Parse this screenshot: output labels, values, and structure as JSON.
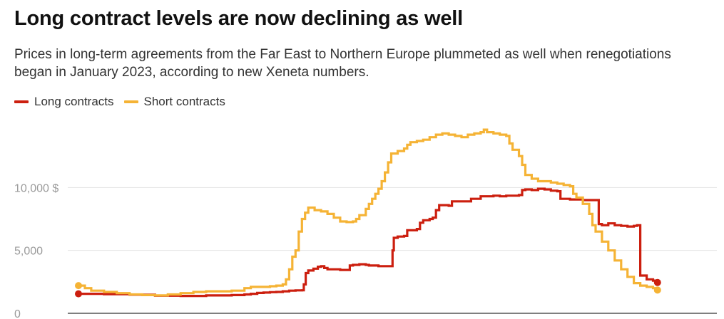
{
  "chart_data": {
    "type": "line",
    "title": "Long contract levels are now declining as well",
    "subtitle": "Prices in long-term agreements from the Far East to Northern Europe plummeted as well when renegotiations began in January 2023, according to new Xeneta numbers.",
    "ylim": [
      0,
      15000
    ],
    "yticks": [
      {
        "value": 0,
        "label": "0"
      },
      {
        "value": 5000,
        "label": "5,000"
      },
      {
        "value": 10000,
        "label": "10,000 $"
      }
    ],
    "x_index_range": [
      0,
      100
    ],
    "step": true,
    "grid": true,
    "legend_position": "top-left",
    "series": [
      {
        "name": "Long contracts",
        "color": "#cc1f0f",
        "points": [
          [
            0,
            1550
          ],
          [
            4,
            1520
          ],
          [
            8,
            1480
          ],
          [
            12,
            1400
          ],
          [
            16,
            1380
          ],
          [
            20,
            1420
          ],
          [
            24,
            1450
          ],
          [
            26,
            1500
          ],
          [
            27,
            1550
          ],
          [
            28,
            1620
          ],
          [
            29,
            1650
          ],
          [
            30,
            1680
          ],
          [
            31,
            1700
          ],
          [
            32,
            1750
          ],
          [
            33,
            1800
          ],
          [
            34,
            1820
          ],
          [
            35,
            1830
          ],
          [
            35.3,
            2300
          ],
          [
            35.6,
            3200
          ],
          [
            36,
            3400
          ],
          [
            36.8,
            3550
          ],
          [
            37.5,
            3700
          ],
          [
            38,
            3750
          ],
          [
            38.5,
            3600
          ],
          [
            39,
            3500
          ],
          [
            41,
            3450
          ],
          [
            42,
            3450
          ],
          [
            42.5,
            3800
          ],
          [
            43,
            3850
          ],
          [
            44,
            3900
          ],
          [
            45,
            3850
          ],
          [
            45.5,
            3800
          ],
          [
            47,
            3750
          ],
          [
            49,
            3750
          ],
          [
            49.2,
            5000
          ],
          [
            49.4,
            6000
          ],
          [
            50,
            6100
          ],
          [
            51,
            6150
          ],
          [
            51.5,
            6600
          ],
          [
            53,
            6700
          ],
          [
            53.5,
            7200
          ],
          [
            54,
            7400
          ],
          [
            55,
            7500
          ],
          [
            55.5,
            7600
          ],
          [
            56,
            8200
          ],
          [
            56.5,
            8600
          ],
          [
            57,
            8600
          ],
          [
            58,
            8550
          ],
          [
            58.5,
            8900
          ],
          [
            60,
            8900
          ],
          [
            61,
            8900
          ],
          [
            61.5,
            9100
          ],
          [
            62,
            9100
          ],
          [
            63,
            9300
          ],
          [
            64,
            9300
          ],
          [
            65,
            9350
          ],
          [
            66,
            9300
          ],
          [
            67,
            9350
          ],
          [
            68,
            9350
          ],
          [
            69,
            9400
          ],
          [
            69.5,
            9800
          ],
          [
            70,
            9850
          ],
          [
            71,
            9800
          ],
          [
            72,
            9900
          ],
          [
            73,
            9850
          ],
          [
            74,
            9750
          ],
          [
            75,
            9700
          ],
          [
            75.5,
            9100
          ],
          [
            76,
            9100
          ],
          [
            77,
            9050
          ],
          [
            78,
            9050
          ],
          [
            79,
            9000
          ],
          [
            80,
            9000
          ],
          [
            81,
            9000
          ],
          [
            81.5,
            7100
          ],
          [
            82,
            7000
          ],
          [
            83,
            7150
          ],
          [
            84,
            7000
          ],
          [
            85,
            6950
          ],
          [
            86,
            6900
          ],
          [
            87,
            6950
          ],
          [
            87.5,
            7000
          ],
          [
            88,
            3000
          ],
          [
            89,
            2700
          ],
          [
            90,
            2600
          ],
          [
            90.7,
            2450
          ]
        ]
      },
      {
        "name": "Short contracts",
        "color": "#f5b335",
        "points": [
          [
            0,
            2200
          ],
          [
            1,
            2000
          ],
          [
            2,
            1800
          ],
          [
            4,
            1700
          ],
          [
            6,
            1600
          ],
          [
            8,
            1500
          ],
          [
            10,
            1450
          ],
          [
            12,
            1420
          ],
          [
            14,
            1500
          ],
          [
            16,
            1600
          ],
          [
            18,
            1700
          ],
          [
            20,
            1750
          ],
          [
            22,
            1750
          ],
          [
            24,
            1800
          ],
          [
            26,
            2000
          ],
          [
            27,
            2100
          ],
          [
            28,
            2100
          ],
          [
            30,
            2150
          ],
          [
            31,
            2200
          ],
          [
            32,
            2300
          ],
          [
            32.5,
            2700
          ],
          [
            33,
            3500
          ],
          [
            33.5,
            4500
          ],
          [
            34,
            5000
          ],
          [
            34.5,
            6500
          ],
          [
            35,
            7500
          ],
          [
            35.5,
            8000
          ],
          [
            36,
            8400
          ],
          [
            37,
            8200
          ],
          [
            38,
            8100
          ],
          [
            39,
            7900
          ],
          [
            40,
            7600
          ],
          [
            41,
            7300
          ],
          [
            42,
            7250
          ],
          [
            43,
            7300
          ],
          [
            43.5,
            7500
          ],
          [
            44,
            7800
          ],
          [
            45,
            8300
          ],
          [
            45.5,
            8700
          ],
          [
            46,
            9100
          ],
          [
            46.5,
            9500
          ],
          [
            47,
            9900
          ],
          [
            47.5,
            10500
          ],
          [
            48,
            11200
          ],
          [
            48.5,
            12000
          ],
          [
            49,
            12700
          ],
          [
            50,
            12900
          ],
          [
            51,
            13100
          ],
          [
            51.5,
            13400
          ],
          [
            52,
            13600
          ],
          [
            53,
            13700
          ],
          [
            54,
            13800
          ],
          [
            55,
            14000
          ],
          [
            56,
            14200
          ],
          [
            57,
            14300
          ],
          [
            58,
            14200
          ],
          [
            59,
            14100
          ],
          [
            60,
            14000
          ],
          [
            61,
            14200
          ],
          [
            62,
            14300
          ],
          [
            63,
            14400
          ],
          [
            63.5,
            14600
          ],
          [
            64,
            14400
          ],
          [
            65,
            14300
          ],
          [
            66,
            14200
          ],
          [
            67,
            14100
          ],
          [
            67.5,
            13500
          ],
          [
            68,
            13000
          ],
          [
            69,
            12500
          ],
          [
            69.5,
            11800
          ],
          [
            70,
            11000
          ],
          [
            71,
            10700
          ],
          [
            72,
            10500
          ],
          [
            73,
            10500
          ],
          [
            74,
            10400
          ],
          [
            75,
            10300
          ],
          [
            76,
            10200
          ],
          [
            77,
            10100
          ],
          [
            77.5,
            9500
          ],
          [
            78,
            9200
          ],
          [
            79,
            8700
          ],
          [
            80,
            7900
          ],
          [
            80.5,
            7000
          ],
          [
            81,
            6500
          ],
          [
            82,
            5700
          ],
          [
            83,
            5000
          ],
          [
            84,
            4200
          ],
          [
            85,
            3500
          ],
          [
            86,
            2900
          ],
          [
            87,
            2400
          ],
          [
            88,
            2200
          ],
          [
            89,
            2100
          ],
          [
            90,
            2000
          ],
          [
            90.7,
            1850
          ]
        ]
      }
    ]
  }
}
